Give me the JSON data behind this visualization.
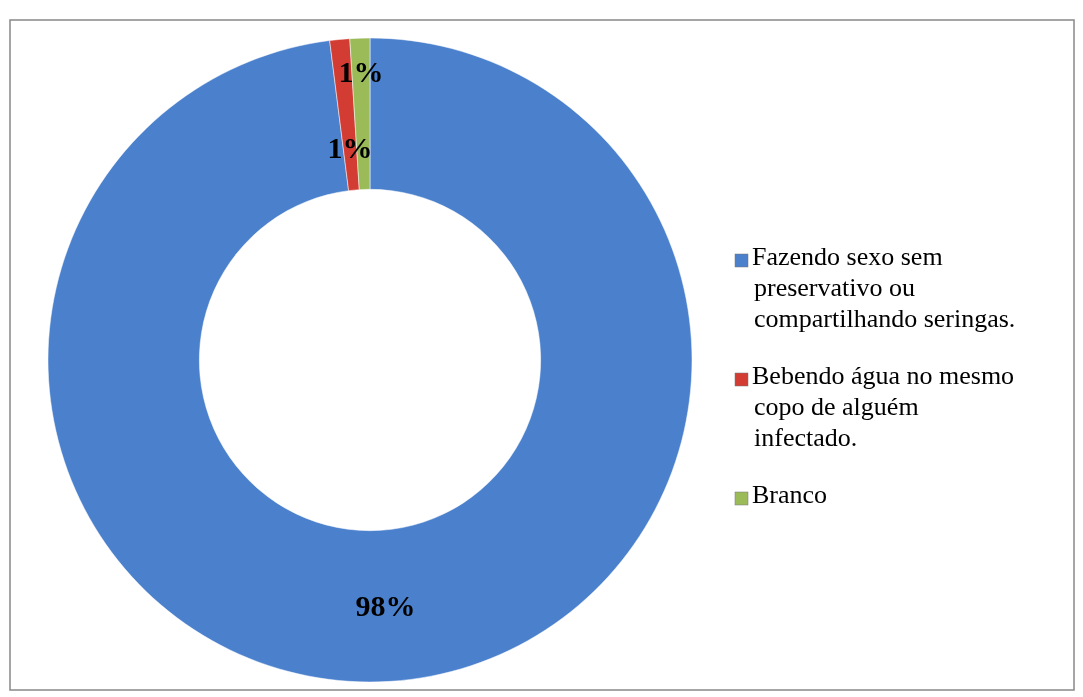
{
  "chart_data": {
    "type": "donut",
    "categories": [
      "Fazendo sexo sem preservativo ou compartilhando seringas.",
      "Bebendo água no mesmo copo de alguém infectado.",
      "Branco"
    ],
    "values": [
      98,
      1,
      1
    ],
    "colors": [
      "#4a80cc",
      "#d23c33",
      "#9bbb59"
    ],
    "value_labels": [
      "98%",
      "1%",
      "1%"
    ],
    "legend": "right"
  }
}
